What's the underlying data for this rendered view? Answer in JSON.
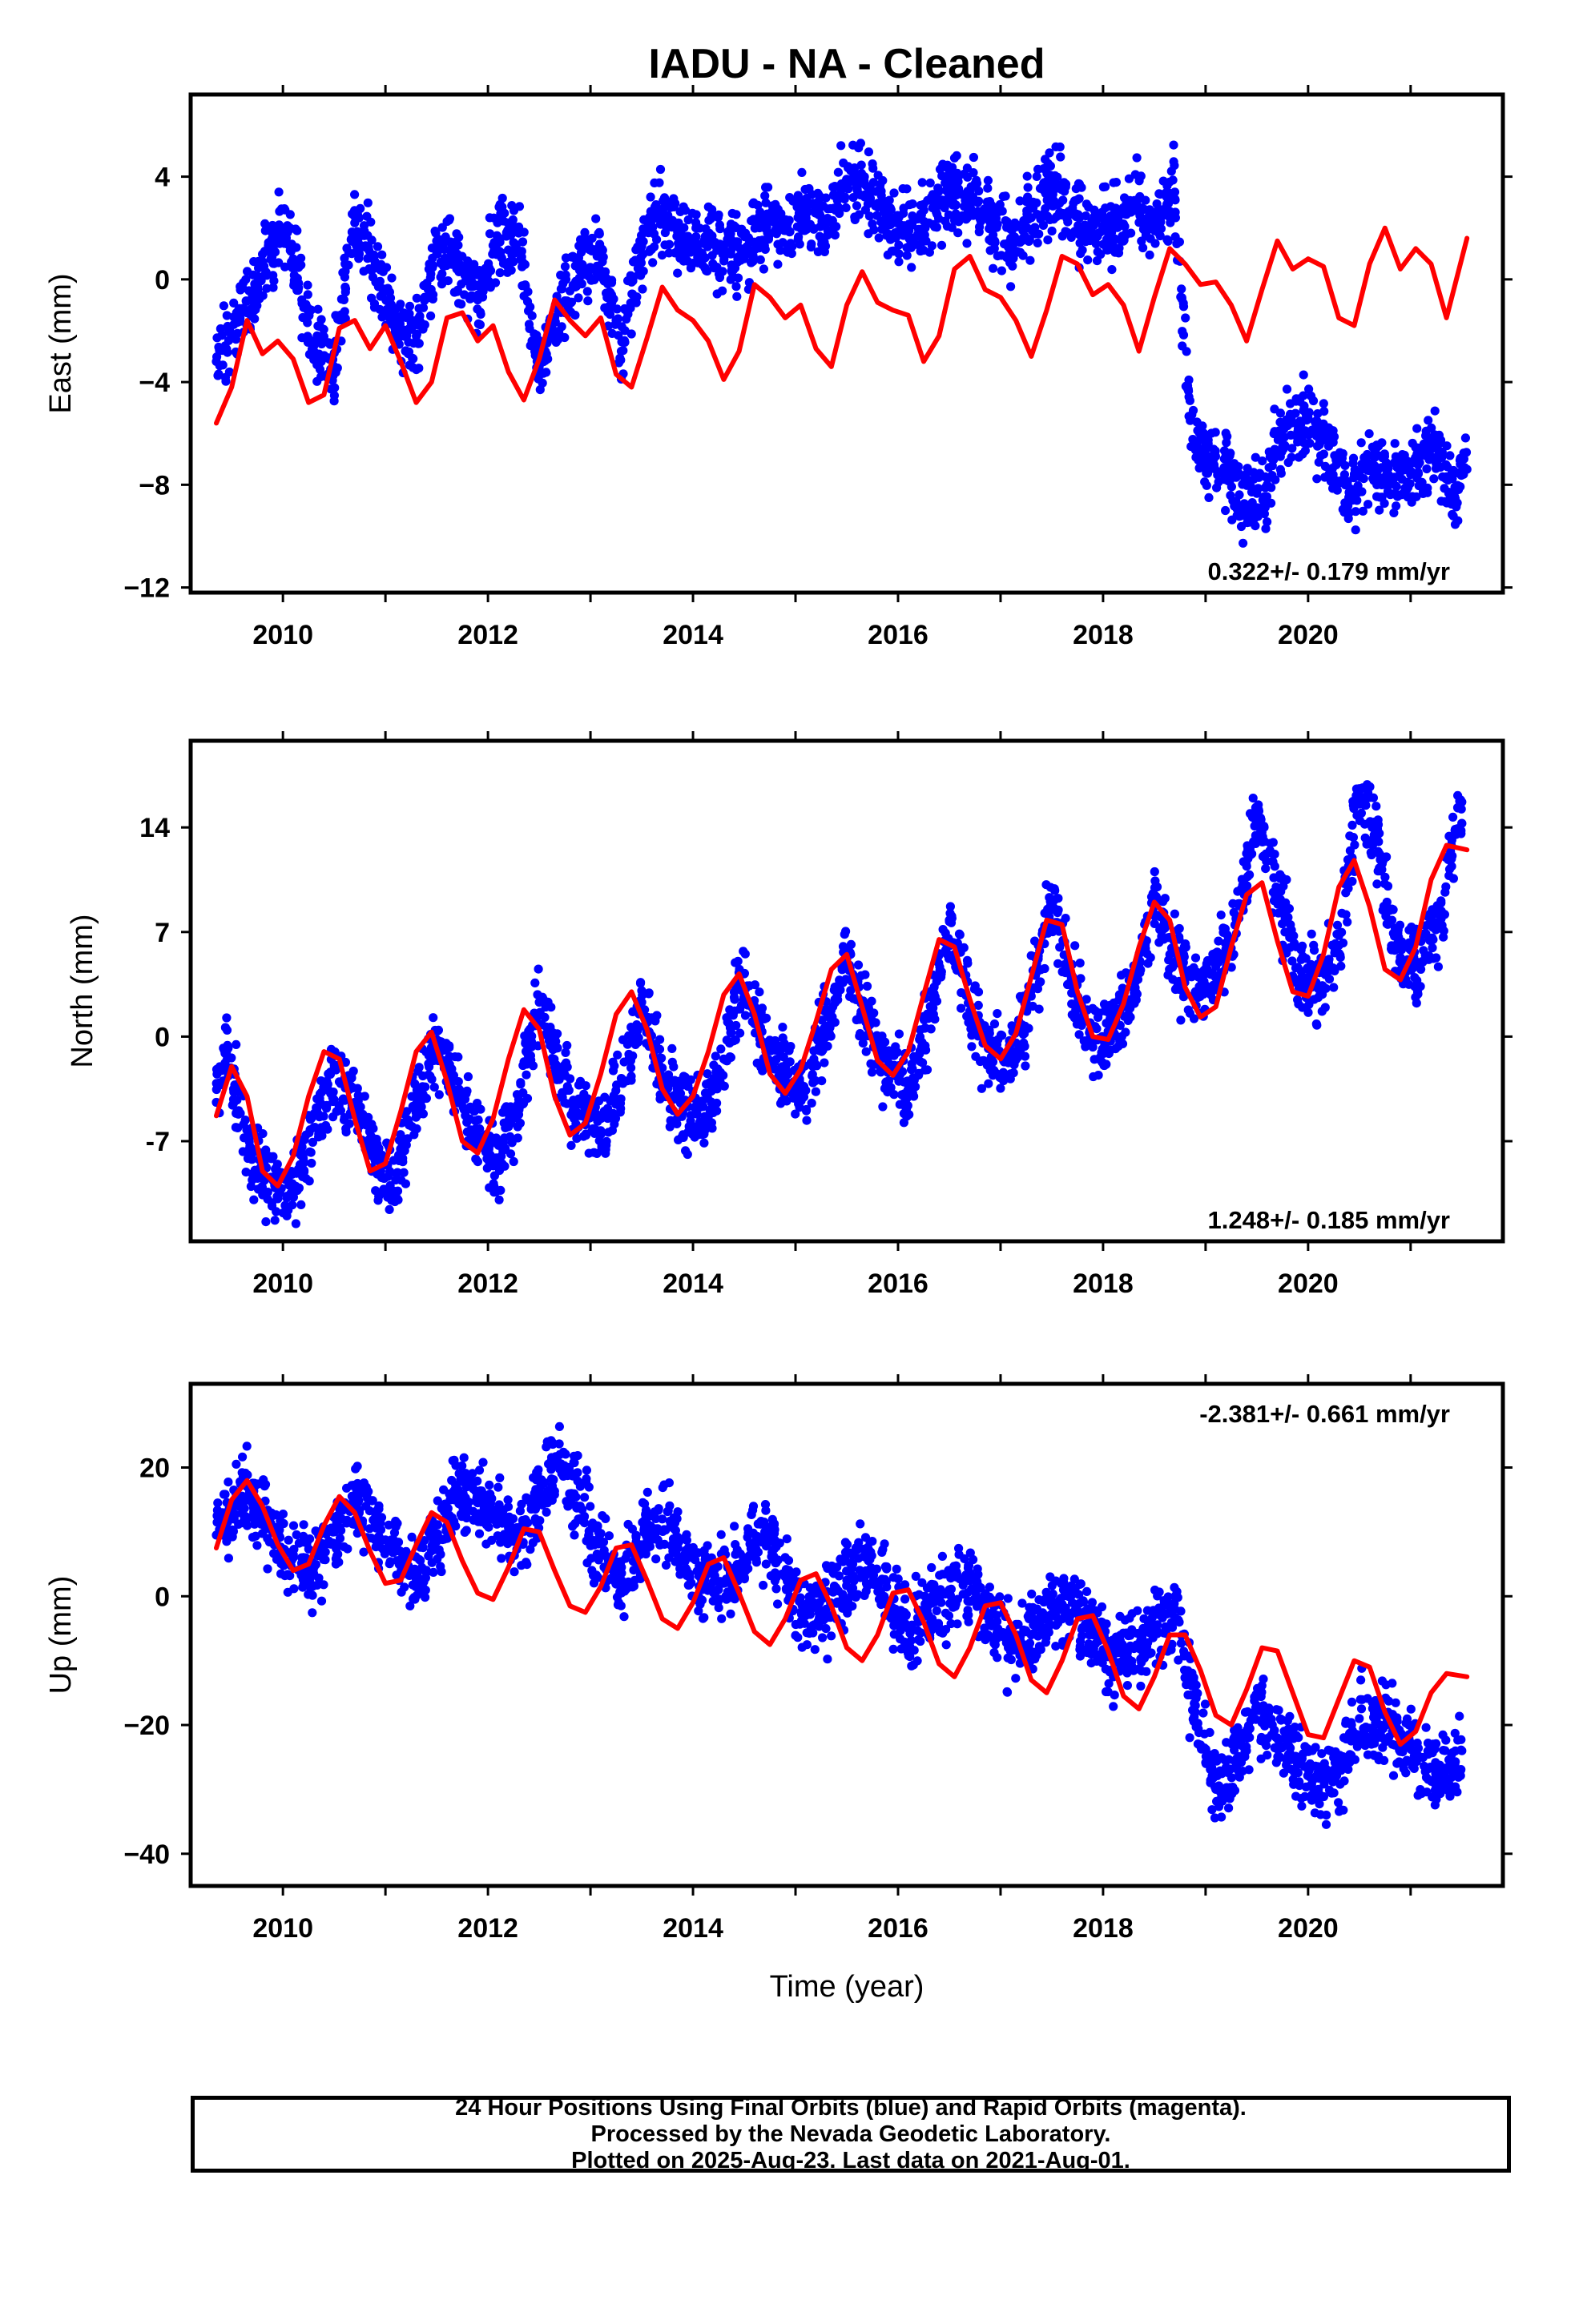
{
  "title": "IADU  - NA - Cleaned",
  "colors": {
    "points": "#0000ff",
    "model": "#ff0000",
    "frame": "#000000"
  },
  "chart_data": [
    {
      "type": "scatter",
      "panel": "east",
      "ylabel": "East (mm)",
      "xlabel": "",
      "rate_label": "0.322+/- 0.179 mm/yr",
      "rate_position": "bottom-right",
      "xlim": [
        2009.1,
        2021.9
      ],
      "ylim": [
        -12.2,
        7.2
      ],
      "yticks": [
        4,
        0,
        -4,
        -8,
        -12
      ],
      "yticklabels": [
        "4",
        "0",
        "−4",
        "−8",
        "−12"
      ],
      "xticks": [
        2010,
        2012,
        2014,
        2016,
        2018,
        2020
      ],
      "xticklabels": [
        "2010",
        "2012",
        "2014",
        "2016",
        "2018",
        "2020"
      ],
      "series": [
        {
          "kind": "points",
          "x": [
            2009.35,
            2009.9,
            2010.0,
            2010.1,
            2010.3,
            2010.5,
            2010.7,
            2010.9,
            2011.1,
            2011.3,
            2011.5,
            2011.7,
            2011.9,
            2012.1,
            2012.3,
            2012.5,
            2012.7,
            2012.9,
            2013.1,
            2013.3,
            2013.5,
            2013.7,
            2013.9,
            2014.1,
            2014.3,
            2014.5,
            2014.7,
            2014.9,
            2015.1,
            2015.3,
            2015.5,
            2015.7,
            2015.9,
            2016.1,
            2016.3,
            2016.5,
            2016.7,
            2016.9,
            2017.1,
            2017.3,
            2017.5,
            2017.7,
            2017.9,
            2018.1,
            2018.3,
            2018.5,
            2018.7,
            2018.85,
            2019.0,
            2019.2,
            2019.4,
            2019.6,
            2019.8,
            2020.0,
            2020.2,
            2020.4,
            2020.6,
            2020.8,
            2021.0,
            2021.2,
            2021.4,
            2021.55
          ],
          "y": [
            -3.2,
            1.2,
            2.0,
            0.8,
            -2.6,
            -3.4,
            2.2,
            0.5,
            -1.8,
            -2.4,
            1.0,
            0.6,
            -0.8,
            1.6,
            1.8,
            -3.4,
            -1.0,
            0.4,
            0.9,
            -2.8,
            1.3,
            2.6,
            1.5,
            1.4,
            1.2,
            0.8,
            2.4,
            1.9,
            2.6,
            2.2,
            3.9,
            3.6,
            2.1,
            1.8,
            2.2,
            3.4,
            3.4,
            2.2,
            1.6,
            2.4,
            3.5,
            2.6,
            1.7,
            2.1,
            2.8,
            2.2,
            3.4,
            -5.5,
            -7.0,
            -7.6,
            -8.9,
            -8.0,
            -5.7,
            -5.4,
            -6.5,
            -8.3,
            -7.2,
            -7.8,
            -7.6,
            -6.3,
            -8.6,
            -7.4
          ]
        },
        {
          "kind": "model",
          "x": [
            2009.35,
            2009.5,
            2009.65,
            2009.8,
            2009.95,
            2010.1,
            2010.25,
            2010.4,
            2010.55,
            2010.7,
            2010.85,
            2011.0,
            2011.15,
            2011.3,
            2011.45,
            2011.6,
            2011.75,
            2011.9,
            2012.05,
            2012.2,
            2012.35,
            2012.5,
            2012.65,
            2012.8,
            2012.95,
            2013.1,
            2013.25,
            2013.4,
            2013.55,
            2013.7,
            2013.85,
            2014.0,
            2014.15,
            2014.3,
            2014.45,
            2014.6,
            2014.75,
            2014.9,
            2015.05,
            2015.2,
            2015.35,
            2015.5,
            2015.65,
            2015.8,
            2015.95,
            2016.1,
            2016.25,
            2016.4,
            2016.55,
            2016.7,
            2016.85,
            2017.0,
            2017.15,
            2017.3,
            2017.45,
            2017.6,
            2017.75,
            2017.9,
            2018.05,
            2018.2,
            2018.35,
            2018.5,
            2018.65,
            2018.8,
            2018.95,
            2019.1,
            2019.25,
            2019.4,
            2019.55,
            2019.7,
            2019.85,
            2020.0,
            2020.15,
            2020.3,
            2020.45,
            2020.6,
            2020.75,
            2020.9,
            2021.05,
            2021.2,
            2021.35,
            2021.55
          ],
          "y": [
            -5.6,
            -4.2,
            -1.6,
            -2.9,
            -2.4,
            -3.1,
            -4.8,
            -4.5,
            -1.9,
            -1.6,
            -2.7,
            -1.8,
            -3.2,
            -4.8,
            -4.0,
            -1.5,
            -1.3,
            -2.4,
            -1.8,
            -3.6,
            -4.7,
            -3.1,
            -0.8,
            -1.6,
            -2.2,
            -1.5,
            -3.7,
            -4.2,
            -2.3,
            -0.3,
            -1.2,
            -1.6,
            -2.4,
            -3.9,
            -2.8,
            -0.2,
            -0.7,
            -1.5,
            -1.0,
            -2.7,
            -3.4,
            -1.0,
            0.3,
            -0.9,
            -1.2,
            -1.4,
            -3.2,
            -2.2,
            0.4,
            0.9,
            -0.4,
            -0.7,
            -1.6,
            -3.0,
            -1.2,
            0.9,
            0.6,
            -0.6,
            -0.2,
            -1.0,
            -2.8,
            -0.7,
            1.2,
            0.6,
            -0.2,
            -0.1,
            -1.0,
            -2.4,
            -0.4,
            1.5,
            0.4,
            0.8,
            0.5,
            -1.5,
            -1.8,
            0.6,
            2.0,
            0.4,
            1.2,
            0.6,
            -1.5,
            1.6
          ]
        }
      ]
    },
    {
      "type": "scatter",
      "panel": "north",
      "ylabel": "North (mm)",
      "xlabel": "",
      "rate_label": "1.248+/- 0.185 mm/yr",
      "rate_position": "bottom-right",
      "xlim": [
        2009.1,
        2021.9
      ],
      "ylim": [
        -13.7,
        19.8
      ],
      "yticks": [
        14,
        7,
        0,
        -7
      ],
      "yticklabels": [
        "14",
        "7",
        "0",
        "-7"
      ],
      "xticks": [
        2010,
        2012,
        2014,
        2016,
        2018,
        2020
      ],
      "xticklabels": [
        "2010",
        "2012",
        "2014",
        "2016",
        "2018",
        "2020"
      ],
      "series": [
        {
          "kind": "points",
          "x": [
            2009.35,
            2009.45,
            2009.7,
            2009.9,
            2010.1,
            2010.3,
            2010.5,
            2010.7,
            2010.9,
            2011.1,
            2011.3,
            2011.5,
            2011.7,
            2011.9,
            2012.1,
            2012.3,
            2012.5,
            2012.7,
            2012.9,
            2013.1,
            2013.3,
            2013.5,
            2013.7,
            2013.9,
            2014.1,
            2014.3,
            2014.5,
            2014.7,
            2014.9,
            2015.1,
            2015.3,
            2015.5,
            2015.7,
            2015.9,
            2016.1,
            2016.3,
            2016.5,
            2016.7,
            2016.9,
            2017.1,
            2017.3,
            2017.5,
            2017.7,
            2017.9,
            2018.1,
            2018.3,
            2018.5,
            2018.7,
            2018.9,
            2019.1,
            2019.3,
            2019.5,
            2019.7,
            2019.9,
            2020.1,
            2020.3,
            2020.5,
            2020.7,
            2020.9,
            2021.1,
            2021.3,
            2021.5
          ],
          "y": [
            -4.4,
            -1.0,
            -8.2,
            -9.6,
            -10.5,
            -6.1,
            -1.9,
            -4.4,
            -8.3,
            -9.6,
            -4.5,
            -0.2,
            -3.8,
            -6.9,
            -8.6,
            -4.2,
            2.3,
            -2.4,
            -5.3,
            -6.3,
            -2.8,
            2.3,
            -2.1,
            -5.1,
            -5.7,
            -1.5,
            4.2,
            -0.4,
            -2.9,
            -3.6,
            0.7,
            5.2,
            0.8,
            -2.4,
            -3.8,
            1.3,
            7.8,
            1.7,
            -1.7,
            -1.5,
            2.7,
            8.5,
            3.4,
            -0.7,
            0.6,
            3.2,
            9.1,
            5.0,
            3.0,
            4.7,
            6.9,
            14.9,
            9.5,
            4.6,
            3.2,
            6.1,
            16.6,
            12.2,
            5.3,
            4.5,
            8.4,
            15.7
          ]
        },
        {
          "kind": "model",
          "x": [
            2009.35,
            2009.5,
            2009.65,
            2009.8,
            2009.95,
            2010.1,
            2010.25,
            2010.4,
            2010.55,
            2010.7,
            2010.85,
            2011.0,
            2011.15,
            2011.3,
            2011.45,
            2011.6,
            2011.75,
            2011.9,
            2012.05,
            2012.2,
            2012.35,
            2012.5,
            2012.65,
            2012.8,
            2012.95,
            2013.1,
            2013.25,
            2013.4,
            2013.55,
            2013.7,
            2013.85,
            2014.0,
            2014.15,
            2014.3,
            2014.45,
            2014.6,
            2014.75,
            2014.9,
            2015.05,
            2015.2,
            2015.35,
            2015.5,
            2015.65,
            2015.8,
            2015.95,
            2016.1,
            2016.25,
            2016.4,
            2016.55,
            2016.7,
            2016.85,
            2017.0,
            2017.15,
            2017.3,
            2017.45,
            2017.6,
            2017.75,
            2017.9,
            2018.05,
            2018.2,
            2018.35,
            2018.5,
            2018.65,
            2018.8,
            2018.95,
            2019.1,
            2019.25,
            2019.4,
            2019.55,
            2019.7,
            2019.85,
            2020.0,
            2020.15,
            2020.3,
            2020.45,
            2020.6,
            2020.75,
            2020.9,
            2021.05,
            2021.2,
            2021.35,
            2021.55
          ],
          "y": [
            -5.3,
            -2.0,
            -4.0,
            -9.0,
            -10.0,
            -8.0,
            -4.0,
            -1.0,
            -1.5,
            -5.5,
            -9.0,
            -8.5,
            -5.0,
            -1.0,
            0.3,
            -3.0,
            -7.0,
            -7.8,
            -5.5,
            -1.5,
            1.8,
            0.5,
            -4.0,
            -6.6,
            -5.8,
            -2.5,
            1.5,
            3.0,
            0.5,
            -3.5,
            -5.2,
            -4.0,
            -1.0,
            2.8,
            4.2,
            1.5,
            -2.5,
            -3.8,
            -2.2,
            1.0,
            4.5,
            5.5,
            2.0,
            -1.6,
            -2.6,
            -1.0,
            2.8,
            6.5,
            6.0,
            2.5,
            -0.6,
            -1.5,
            0.2,
            4.0,
            7.8,
            7.5,
            3.0,
            0.0,
            -0.2,
            2.2,
            6.0,
            9.0,
            7.8,
            3.3,
            1.3,
            2.0,
            6.0,
            9.5,
            10.3,
            6.4,
            3.0,
            2.7,
            5.5,
            10.0,
            11.8,
            8.7,
            4.5,
            3.8,
            6.0,
            10.5,
            12.8,
            12.5
          ]
        }
      ]
    },
    {
      "type": "scatter",
      "panel": "up",
      "ylabel": "Up (mm)",
      "xlabel": "Time (year)",
      "rate_label": "-2.381+/- 0.661 mm/yr",
      "rate_position": "top-right",
      "xlim": [
        2009.1,
        2021.9
      ],
      "ylim": [
        -45,
        33
      ],
      "yticks": [
        20,
        0,
        -20,
        -40
      ],
      "yticklabels": [
        "20",
        "0",
        "−20",
        "−40"
      ],
      "xticks": [
        2010,
        2012,
        2014,
        2016,
        2018,
        2020
      ],
      "xticklabels": [
        "2010",
        "2012",
        "2014",
        "2016",
        "2018",
        "2020"
      ],
      "series": [
        {
          "kind": "points",
          "x": [
            2009.35,
            2009.65,
            2009.9,
            2010.1,
            2010.3,
            2010.5,
            2010.7,
            2010.9,
            2011.1,
            2011.3,
            2011.5,
            2011.7,
            2011.9,
            2012.1,
            2012.3,
            2012.5,
            2012.7,
            2012.9,
            2013.1,
            2013.3,
            2013.5,
            2013.7,
            2013.9,
            2014.1,
            2014.3,
            2014.5,
            2014.7,
            2014.9,
            2015.1,
            2015.3,
            2015.5,
            2015.7,
            2015.9,
            2016.1,
            2016.3,
            2016.5,
            2016.7,
            2016.9,
            2017.1,
            2017.3,
            2017.5,
            2017.7,
            2017.9,
            2018.1,
            2018.3,
            2018.5,
            2018.7,
            2018.9,
            2019.1,
            2019.3,
            2019.5,
            2019.7,
            2019.9,
            2020.1,
            2020.3,
            2020.5,
            2020.7,
            2020.9,
            2021.1,
            2021.3,
            2021.5
          ],
          "y": [
            9.5,
            17.0,
            10.0,
            6.0,
            3.5,
            10.0,
            15.0,
            11.0,
            7.0,
            2.0,
            8.5,
            16.0,
            14.5,
            12.0,
            8.5,
            15.0,
            22.0,
            14.0,
            6.5,
            2.5,
            8.0,
            12.0,
            6.0,
            3.0,
            2.0,
            6.0,
            10.0,
            3.0,
            -3.0,
            -2.0,
            2.5,
            6.0,
            -1.0,
            -5.0,
            -3.0,
            1.0,
            2.5,
            -3.0,
            -8.0,
            -6.0,
            -3.0,
            -1.0,
            -6.0,
            -10.0,
            -8.0,
            -5.0,
            -2.0,
            -18.0,
            -30.0,
            -26.0,
            -17.0,
            -22.0,
            -26.0,
            -30.0,
            -27.0,
            -19.0,
            -20.0,
            -22.0,
            -25.0,
            -29.0,
            -24.0
          ]
        },
        {
          "kind": "model",
          "x": [
            2009.35,
            2009.5,
            2009.65,
            2009.8,
            2009.95,
            2010.1,
            2010.25,
            2010.4,
            2010.55,
            2010.7,
            2010.85,
            2011.0,
            2011.15,
            2011.3,
            2011.45,
            2011.6,
            2011.75,
            2011.9,
            2012.05,
            2012.2,
            2012.35,
            2012.5,
            2012.65,
            2012.8,
            2012.95,
            2013.1,
            2013.25,
            2013.4,
            2013.55,
            2013.7,
            2013.85,
            2014.0,
            2014.15,
            2014.3,
            2014.45,
            2014.6,
            2014.75,
            2014.9,
            2015.05,
            2015.2,
            2015.35,
            2015.5,
            2015.65,
            2015.8,
            2015.95,
            2016.1,
            2016.25,
            2016.4,
            2016.55,
            2016.7,
            2016.85,
            2017.0,
            2017.15,
            2017.3,
            2017.45,
            2017.6,
            2017.75,
            2017.9,
            2018.05,
            2018.2,
            2018.35,
            2018.5,
            2018.65,
            2018.8,
            2018.95,
            2019.1,
            2019.25,
            2019.4,
            2019.55,
            2019.7,
            2019.85,
            2020.0,
            2020.15,
            2020.3,
            2020.45,
            2020.6,
            2020.75,
            2020.9,
            2021.05,
            2021.2,
            2021.35,
            2021.55
          ],
          "y": [
            7.5,
            15.0,
            18.0,
            14.0,
            8.0,
            4.0,
            5.0,
            11.0,
            15.5,
            13.0,
            7.0,
            2.0,
            2.5,
            8.0,
            13.0,
            11.5,
            5.5,
            0.5,
            -0.5,
            4.5,
            10.5,
            10.0,
            4.0,
            -1.5,
            -2.5,
            1.5,
            7.5,
            8.0,
            2.5,
            -3.5,
            -5.0,
            -1.0,
            5.0,
            6.0,
            0.5,
            -5.5,
            -7.5,
            -3.5,
            2.5,
            3.5,
            -1.5,
            -8.0,
            -10.0,
            -6.0,
            0.5,
            1.0,
            -4.0,
            -10.5,
            -12.5,
            -8.0,
            -1.5,
            -1.0,
            -6.0,
            -13.0,
            -15.0,
            -10.0,
            -3.5,
            -3.0,
            -8.5,
            -15.5,
            -17.5,
            -12.5,
            -6.0,
            -6.0,
            -11.5,
            -18.5,
            -20.0,
            -14.5,
            -8.0,
            -8.5,
            -15.0,
            -21.5,
            -22.0,
            -16.0,
            -10.0,
            -11.0,
            -18.0,
            -23.0,
            -21.0,
            -15.0,
            -12.0,
            -12.5
          ]
        }
      ]
    }
  ],
  "footer": {
    "line1": "24 Hour Positions Using Final Orbits (blue) and Rapid Orbits (magenta).",
    "line2": "Processed by the Nevada Geodetic Laboratory.",
    "line3": "Plotted on 2025-Aug-23. Last data on 2021-Aug-01."
  }
}
